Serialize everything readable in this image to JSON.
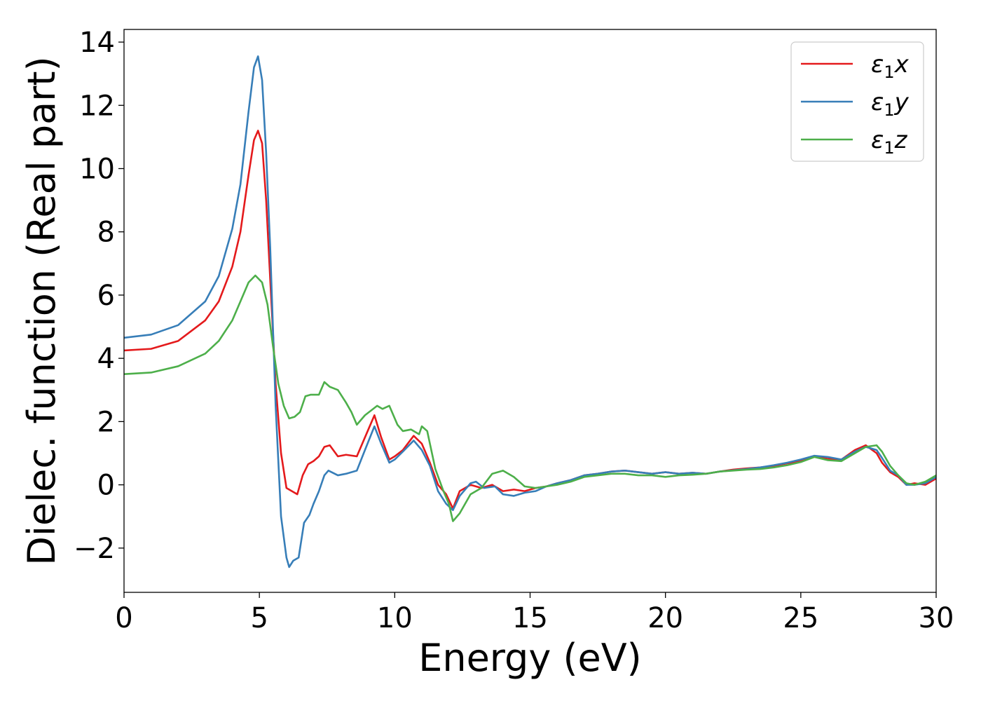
{
  "chart_data": {
    "type": "line",
    "xlabel": "Energy (eV)",
    "ylabel": "Dielec. function (Real part)",
    "xlim": [
      0,
      30
    ],
    "ylim": [
      -3.4,
      14.4
    ],
    "xticks": [
      0,
      5,
      10,
      15,
      20,
      25,
      30
    ],
    "xtick_labels": [
      "0",
      "5",
      "10",
      "15",
      "20",
      "25",
      "30"
    ],
    "yticks": [
      -2,
      0,
      2,
      4,
      6,
      8,
      10,
      12,
      14
    ],
    "ytick_labels": [
      "−2",
      "0",
      "2",
      "4",
      "6",
      "8",
      "10",
      "12",
      "14"
    ],
    "grid": false,
    "legend_position": "top-right",
    "series": [
      {
        "name": "x",
        "legend_base": "ε",
        "legend_sub": "1",
        "legend_var": "x",
        "color": "#e41a1c",
        "points": [
          [
            0,
            4.25
          ],
          [
            1,
            4.3
          ],
          [
            2,
            4.55
          ],
          [
            3,
            5.2
          ],
          [
            3.5,
            5.8
          ],
          [
            4,
            6.9
          ],
          [
            4.3,
            8.0
          ],
          [
            4.6,
            9.8
          ],
          [
            4.8,
            10.9
          ],
          [
            4.95,
            11.2
          ],
          [
            5.1,
            10.8
          ],
          [
            5.25,
            9.0
          ],
          [
            5.4,
            6.5
          ],
          [
            5.6,
            3.2
          ],
          [
            5.8,
            1.0
          ],
          [
            6.0,
            -0.1
          ],
          [
            6.2,
            -0.2
          ],
          [
            6.4,
            -0.3
          ],
          [
            6.6,
            0.3
          ],
          [
            6.8,
            0.65
          ],
          [
            7.0,
            0.75
          ],
          [
            7.2,
            0.9
          ],
          [
            7.4,
            1.2
          ],
          [
            7.6,
            1.25
          ],
          [
            7.9,
            0.9
          ],
          [
            8.2,
            0.95
          ],
          [
            8.6,
            0.9
          ],
          [
            9.0,
            1.7
          ],
          [
            9.25,
            2.2
          ],
          [
            9.5,
            1.5
          ],
          [
            9.8,
            0.8
          ],
          [
            10.0,
            0.9
          ],
          [
            10.3,
            1.1
          ],
          [
            10.7,
            1.55
          ],
          [
            11.0,
            1.3
          ],
          [
            11.3,
            0.7
          ],
          [
            11.6,
            0.0
          ],
          [
            11.9,
            -0.3
          ],
          [
            12.15,
            -0.75
          ],
          [
            12.4,
            -0.2
          ],
          [
            12.8,
            0.0
          ],
          [
            13.2,
            -0.1
          ],
          [
            13.6,
            0.0
          ],
          [
            14.0,
            -0.2
          ],
          [
            14.4,
            -0.15
          ],
          [
            14.8,
            -0.2
          ],
          [
            15.2,
            -0.1
          ],
          [
            15.6,
            -0.05
          ],
          [
            16.0,
            0.05
          ],
          [
            16.5,
            0.15
          ],
          [
            17.0,
            0.3
          ],
          [
            17.5,
            0.35
          ],
          [
            18.0,
            0.42
          ],
          [
            18.5,
            0.45
          ],
          [
            19.0,
            0.4
          ],
          [
            19.5,
            0.35
          ],
          [
            20.0,
            0.4
          ],
          [
            20.5,
            0.35
          ],
          [
            21.0,
            0.38
          ],
          [
            21.5,
            0.35
          ],
          [
            22.0,
            0.42
          ],
          [
            22.5,
            0.48
          ],
          [
            23.0,
            0.52
          ],
          [
            23.5,
            0.55
          ],
          [
            24.0,
            0.6
          ],
          [
            24.5,
            0.68
          ],
          [
            25.0,
            0.75
          ],
          [
            25.5,
            0.9
          ],
          [
            26.0,
            0.82
          ],
          [
            26.5,
            0.8
          ],
          [
            27.0,
            1.1
          ],
          [
            27.4,
            1.25
          ],
          [
            27.8,
            1.0
          ],
          [
            28.0,
            0.7
          ],
          [
            28.3,
            0.4
          ],
          [
            28.6,
            0.25
          ],
          [
            28.9,
            0.0
          ],
          [
            29.2,
            0.05
          ],
          [
            29.6,
            0.0
          ],
          [
            30.0,
            0.2
          ]
        ]
      },
      {
        "name": "y",
        "legend_base": "ε",
        "legend_sub": "1",
        "legend_var": "y",
        "color": "#377eb8",
        "points": [
          [
            0,
            4.65
          ],
          [
            1,
            4.75
          ],
          [
            2,
            5.05
          ],
          [
            3,
            5.8
          ],
          [
            3.5,
            6.6
          ],
          [
            4,
            8.1
          ],
          [
            4.3,
            9.5
          ],
          [
            4.6,
            11.8
          ],
          [
            4.8,
            13.2
          ],
          [
            4.95,
            13.55
          ],
          [
            5.1,
            12.8
          ],
          [
            5.25,
            10.5
          ],
          [
            5.4,
            7.5
          ],
          [
            5.6,
            2.5
          ],
          [
            5.8,
            -1.0
          ],
          [
            6.0,
            -2.3
          ],
          [
            6.1,
            -2.6
          ],
          [
            6.25,
            -2.4
          ],
          [
            6.45,
            -2.3
          ],
          [
            6.65,
            -1.2
          ],
          [
            6.85,
            -0.95
          ],
          [
            7.0,
            -0.6
          ],
          [
            7.2,
            -0.2
          ],
          [
            7.4,
            0.3
          ],
          [
            7.55,
            0.45
          ],
          [
            7.9,
            0.3
          ],
          [
            8.2,
            0.35
          ],
          [
            8.6,
            0.45
          ],
          [
            8.9,
            1.1
          ],
          [
            9.25,
            1.85
          ],
          [
            9.5,
            1.3
          ],
          [
            9.8,
            0.7
          ],
          [
            10.0,
            0.8
          ],
          [
            10.3,
            1.05
          ],
          [
            10.7,
            1.4
          ],
          [
            11.0,
            1.1
          ],
          [
            11.3,
            0.6
          ],
          [
            11.6,
            -0.2
          ],
          [
            11.9,
            -0.6
          ],
          [
            12.15,
            -0.8
          ],
          [
            12.4,
            -0.35
          ],
          [
            12.8,
            0.05
          ],
          [
            13.0,
            0.1
          ],
          [
            13.3,
            -0.1
          ],
          [
            13.7,
            -0.05
          ],
          [
            14.0,
            -0.3
          ],
          [
            14.4,
            -0.35
          ],
          [
            14.8,
            -0.25
          ],
          [
            15.2,
            -0.2
          ],
          [
            15.6,
            -0.05
          ],
          [
            16.0,
            0.05
          ],
          [
            16.5,
            0.15
          ],
          [
            17.0,
            0.3
          ],
          [
            17.5,
            0.35
          ],
          [
            18.0,
            0.42
          ],
          [
            18.5,
            0.45
          ],
          [
            19.0,
            0.4
          ],
          [
            19.5,
            0.35
          ],
          [
            20.0,
            0.4
          ],
          [
            20.5,
            0.35
          ],
          [
            21.0,
            0.38
          ],
          [
            21.5,
            0.35
          ],
          [
            22.0,
            0.42
          ],
          [
            22.5,
            0.46
          ],
          [
            23.0,
            0.5
          ],
          [
            23.5,
            0.55
          ],
          [
            24.0,
            0.62
          ],
          [
            24.5,
            0.7
          ],
          [
            25.0,
            0.8
          ],
          [
            25.5,
            0.92
          ],
          [
            26.0,
            0.88
          ],
          [
            26.5,
            0.8
          ],
          [
            27.0,
            1.05
          ],
          [
            27.4,
            1.2
          ],
          [
            27.8,
            1.1
          ],
          [
            28.0,
            0.85
          ],
          [
            28.3,
            0.45
          ],
          [
            28.6,
            0.3
          ],
          [
            28.9,
            0.0
          ],
          [
            29.2,
            0.0
          ],
          [
            29.6,
            0.05
          ],
          [
            30.0,
            0.25
          ]
        ]
      },
      {
        "name": "z",
        "legend_base": "ε",
        "legend_sub": "1",
        "legend_var": "z",
        "color": "#4daf4a",
        "points": [
          [
            0,
            3.5
          ],
          [
            1,
            3.55
          ],
          [
            2,
            3.75
          ],
          [
            3,
            4.15
          ],
          [
            3.5,
            4.55
          ],
          [
            4,
            5.2
          ],
          [
            4.3,
            5.8
          ],
          [
            4.6,
            6.4
          ],
          [
            4.85,
            6.62
          ],
          [
            5.1,
            6.4
          ],
          [
            5.3,
            5.7
          ],
          [
            5.5,
            4.4
          ],
          [
            5.7,
            3.2
          ],
          [
            5.9,
            2.5
          ],
          [
            6.1,
            2.1
          ],
          [
            6.3,
            2.15
          ],
          [
            6.5,
            2.3
          ],
          [
            6.7,
            2.8
          ],
          [
            6.9,
            2.85
          ],
          [
            7.2,
            2.85
          ],
          [
            7.4,
            3.25
          ],
          [
            7.6,
            3.1
          ],
          [
            7.9,
            3.0
          ],
          [
            8.2,
            2.6
          ],
          [
            8.4,
            2.3
          ],
          [
            8.6,
            1.9
          ],
          [
            8.9,
            2.2
          ],
          [
            9.2,
            2.4
          ],
          [
            9.35,
            2.5
          ],
          [
            9.55,
            2.4
          ],
          [
            9.8,
            2.5
          ],
          [
            10.1,
            1.9
          ],
          [
            10.3,
            1.7
          ],
          [
            10.6,
            1.75
          ],
          [
            10.9,
            1.6
          ],
          [
            11.0,
            1.85
          ],
          [
            11.2,
            1.7
          ],
          [
            11.5,
            0.5
          ],
          [
            11.8,
            -0.2
          ],
          [
            12.0,
            -0.6
          ],
          [
            12.15,
            -1.15
          ],
          [
            12.4,
            -0.9
          ],
          [
            12.8,
            -0.3
          ],
          [
            13.2,
            -0.1
          ],
          [
            13.6,
            0.35
          ],
          [
            14.0,
            0.45
          ],
          [
            14.4,
            0.25
          ],
          [
            14.8,
            -0.05
          ],
          [
            15.2,
            -0.1
          ],
          [
            15.6,
            -0.05
          ],
          [
            16.0,
            0.0
          ],
          [
            16.5,
            0.1
          ],
          [
            17.0,
            0.25
          ],
          [
            17.5,
            0.3
          ],
          [
            18.0,
            0.35
          ],
          [
            18.5,
            0.35
          ],
          [
            19.0,
            0.3
          ],
          [
            19.5,
            0.3
          ],
          [
            20.0,
            0.25
          ],
          [
            20.5,
            0.3
          ],
          [
            21.0,
            0.32
          ],
          [
            21.5,
            0.35
          ],
          [
            22.0,
            0.42
          ],
          [
            22.5,
            0.45
          ],
          [
            23.0,
            0.48
          ],
          [
            23.5,
            0.5
          ],
          [
            24.0,
            0.55
          ],
          [
            24.5,
            0.62
          ],
          [
            25.0,
            0.72
          ],
          [
            25.5,
            0.88
          ],
          [
            26.0,
            0.78
          ],
          [
            26.5,
            0.75
          ],
          [
            27.0,
            1.0
          ],
          [
            27.4,
            1.2
          ],
          [
            27.8,
            1.25
          ],
          [
            28.0,
            1.05
          ],
          [
            28.3,
            0.6
          ],
          [
            28.6,
            0.3
          ],
          [
            28.9,
            0.05
          ],
          [
            29.2,
            0.0
          ],
          [
            29.6,
            0.1
          ],
          [
            30.0,
            0.3
          ]
        ]
      }
    ]
  }
}
